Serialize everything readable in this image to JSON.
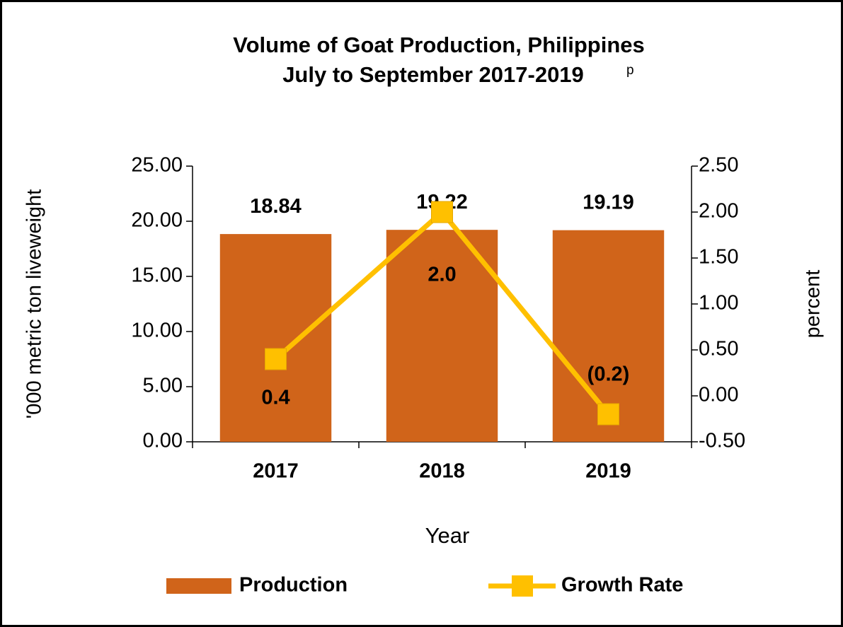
{
  "chart_data": {
    "type": "bar",
    "title": "Volume of Goat Production, Philippines",
    "subtitle": "July to September 2017-2019",
    "subtitle_superscript": "p",
    "x_label": "Year",
    "y_label": "'000 metric ton liveweight",
    "y2_label": "percent",
    "categories": [
      "2017",
      "2018",
      "2019"
    ],
    "series": [
      {
        "name": "Production",
        "type": "bar",
        "color": "#d0641a",
        "values": [
          18.84,
          19.22,
          19.19
        ]
      },
      {
        "name": "Growth Rate",
        "type": "line",
        "axis": "y2",
        "color": "#ffc000",
        "values": [
          0.4,
          2.0,
          -0.2
        ],
        "value_labels": [
          "0.4",
          "2.0",
          "(0.2)"
        ]
      }
    ],
    "ylim": [
      0,
      25
    ],
    "yticks": [
      {
        "value": 0,
        "label": "0.00"
      },
      {
        "value": 5,
        "label": "5.00"
      },
      {
        "value": 10,
        "label": "10.00"
      },
      {
        "value": 15,
        "label": "15.00"
      },
      {
        "value": 20,
        "label": "20.00"
      },
      {
        "value": 25,
        "label": "25.00"
      }
    ],
    "y2lim": [
      -0.5,
      2.5
    ],
    "y2ticks": [
      {
        "value": -0.5,
        "label": "-0.50"
      },
      {
        "value": 0,
        "label": "0.00"
      },
      {
        "value": 0.5,
        "label": "0.50"
      },
      {
        "value": 1,
        "label": "1.00"
      },
      {
        "value": 1.5,
        "label": "1.50"
      },
      {
        "value": 2,
        "label": "2.00"
      },
      {
        "value": 2.5,
        "label": "2.50"
      }
    ],
    "grid": false,
    "legend": "bottom"
  }
}
